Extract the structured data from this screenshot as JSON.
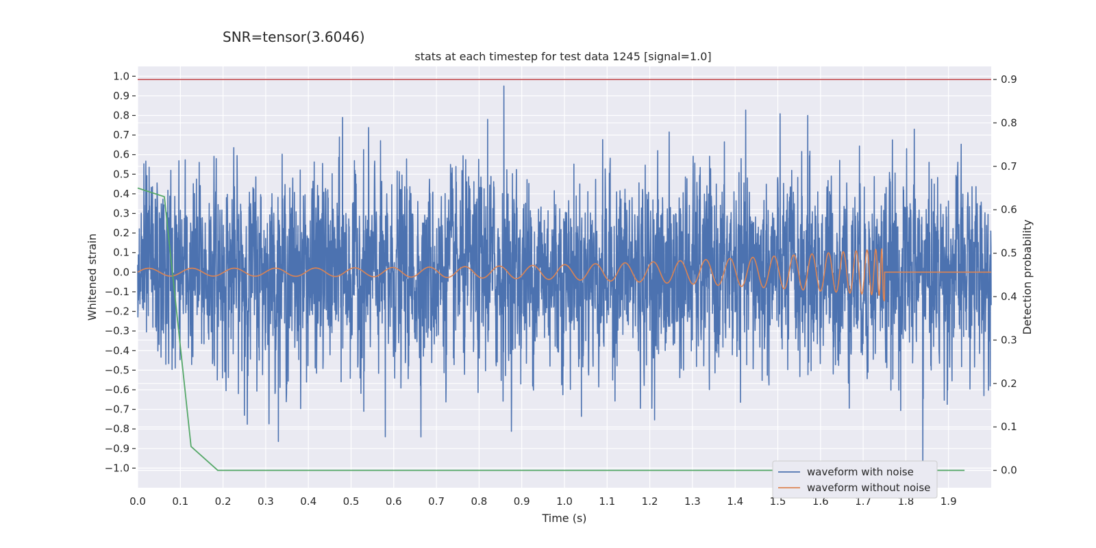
{
  "chart_data": {
    "type": "line",
    "suptitle": "SNR=tensor(3.6046)",
    "title": "stats at each timestep for test data 1245 [signal=1.0]",
    "xlabel": "Time (s)",
    "ylabel": "Whitened strain",
    "ylabel_right": "Detection probability",
    "xlim": [
      0.0,
      2.0
    ],
    "ylim": [
      -1.1,
      1.05
    ],
    "ylim_right": [
      -0.04,
      0.93
    ],
    "x_ticks": [
      "0.0",
      "0.1",
      "0.2",
      "0.3",
      "0.4",
      "0.5",
      "0.6",
      "0.7",
      "0.8",
      "0.9",
      "1.0",
      "1.1",
      "1.2",
      "1.3",
      "1.4",
      "1.5",
      "1.6",
      "1.7",
      "1.8",
      "1.9"
    ],
    "y_ticks": [
      "1.0",
      "0.9",
      "0.8",
      "0.7",
      "0.6",
      "0.5",
      "0.4",
      "0.3",
      "0.2",
      "0.1",
      "0.0",
      "−0.1",
      "−0.2",
      "−0.3",
      "−0.4",
      "−0.5",
      "−0.6",
      "−0.7",
      "−0.8",
      "−0.9",
      "−1.0"
    ],
    "y_ticks_right": [
      "0.9",
      "0.8",
      "0.7",
      "0.6",
      "0.5",
      "0.4",
      "0.3",
      "0.2",
      "0.1",
      "0.0"
    ],
    "grid": true,
    "legend_position": "lower-right",
    "series": [
      {
        "name": "waveform with noise",
        "axis": "left",
        "color": "#4c72b0",
        "kind": "noise",
        "x_range": [
          0.0,
          2.0
        ],
        "amplitude_typical": 0.25,
        "peaks": [
          {
            "x": 0.858,
            "y": 0.95
          },
          {
            "x": 0.48,
            "y": 0.79
          },
          {
            "x": 0.82,
            "y": 0.78
          },
          {
            "x": 1.57,
            "y": 0.8
          },
          {
            "x": 1.82,
            "y": 0.73
          },
          {
            "x": 0.58,
            "y": -0.84
          },
          {
            "x": 0.25,
            "y": -0.73
          },
          {
            "x": 1.84,
            "y": -1.0
          },
          {
            "x": 0.53,
            "y": -0.71
          }
        ]
      },
      {
        "name": "waveform without noise",
        "axis": "left",
        "color": "#dd8452",
        "kind": "chirp",
        "x_range": [
          0.0,
          2.0
        ],
        "merger_time": 1.75,
        "amplitude_start": 0.02,
        "amplitude_peak": 0.12,
        "min_at_merger": -0.15
      },
      {
        "name": "",
        "axis": "right",
        "color": "#55a868",
        "x": [
          0.0,
          0.0625,
          0.125,
          0.1875,
          0.25,
          0.5,
          1.0,
          1.5,
          1.9375
        ],
        "y": [
          0.65,
          0.63,
          0.055,
          0.0,
          0.0,
          0.0,
          0.0,
          0.0,
          0.0
        ]
      }
    ],
    "threshold": {
      "axis": "right",
      "value": 0.9,
      "color": "#c44e52"
    }
  }
}
